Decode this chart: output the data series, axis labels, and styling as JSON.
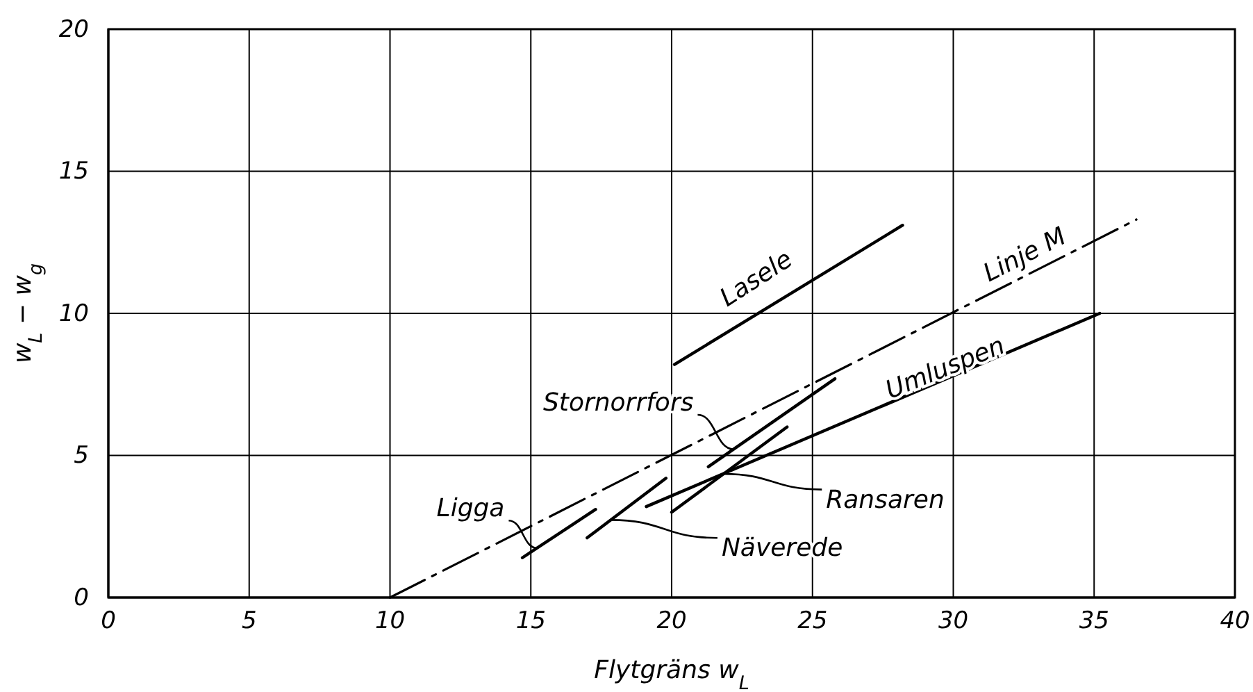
{
  "chart_data": {
    "type": "line",
    "xlabel": "Flytgräns w$_{L}$",
    "ylabel": "w$_{L}$ − w$_{g}$",
    "xlim": [
      0,
      40
    ],
    "xticks": [
      0,
      5,
      10,
      15,
      20,
      25,
      30,
      35,
      40
    ],
    "ylim": [
      0,
      20
    ],
    "yticks": [
      0,
      5,
      10,
      15,
      20
    ],
    "grid": true,
    "legend": false,
    "marker": "none",
    "series": [
      {
        "name": "Linje M",
        "color": "#000000",
        "line_style": "dashed",
        "x": [
          10,
          36.5
        ],
        "values": [
          0,
          13.3
        ]
      },
      {
        "name": "Umluspen",
        "color": "#000000",
        "line_style": "solid",
        "x": [
          19.1,
          35.2
        ],
        "values": [
          3.2,
          10
        ]
      },
      {
        "name": "Lasele",
        "color": "#000000",
        "line_style": "solid",
        "x": [
          20.1,
          28.2
        ],
        "values": [
          8.2,
          13.1
        ]
      },
      {
        "name": "Stornorrfors",
        "color": "#000000",
        "line_style": "solid",
        "x": [
          21.3,
          25.8
        ],
        "values": [
          4.6,
          7.7
        ]
      },
      {
        "name": "Ransaren",
        "color": "#000000",
        "line_style": "solid",
        "x": [
          20,
          24.1
        ],
        "values": [
          3,
          6
        ]
      },
      {
        "name": "Ligga",
        "color": "#000000",
        "line_style": "solid",
        "x": [
          14.7,
          17.3
        ],
        "values": [
          1.4,
          3.1
        ]
      },
      {
        "name": "Näverede",
        "color": "#000000",
        "line_style": "solid",
        "x": [
          17,
          19.8
        ],
        "values": [
          2.1,
          4.2
        ]
      }
    ]
  }
}
